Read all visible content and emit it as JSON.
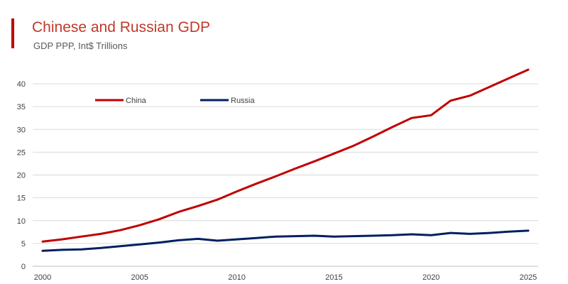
{
  "header": {
    "title": "Chinese and Russian GDP",
    "subtitle": "GDP PPP, Int$ Trillions",
    "accent_color": "#c00000",
    "title_color": "#c0392b"
  },
  "chart_data": {
    "type": "line",
    "title": "Chinese and Russian GDP",
    "subtitle": "GDP PPP, Int$ Trillions",
    "xlabel": "",
    "ylabel": "",
    "x": [
      2000,
      2001,
      2002,
      2003,
      2004,
      2005,
      2006,
      2007,
      2008,
      2009,
      2010,
      2011,
      2012,
      2013,
      2014,
      2015,
      2016,
      2017,
      2018,
      2019,
      2020,
      2021,
      2022,
      2023,
      2024,
      2025
    ],
    "xlim": [
      2000,
      2025
    ],
    "ylim": [
      0,
      40
    ],
    "x_ticks": [
      2000,
      2005,
      2010,
      2015,
      2020,
      2025
    ],
    "y_ticks": [
      0,
      5,
      10,
      15,
      20,
      25,
      30,
      35,
      40
    ],
    "grid": "horizontal",
    "legend_position": "top-left",
    "series": [
      {
        "name": "China",
        "color": "#c00000",
        "values": [
          5.4,
          5.9,
          6.5,
          7.1,
          7.9,
          9.0,
          10.3,
          11.9,
          13.2,
          14.6,
          16.4,
          18.1,
          19.7,
          21.4,
          23.0,
          24.7,
          26.4,
          28.4,
          30.5,
          32.5,
          33.1,
          36.3,
          37.4,
          39.3,
          41.2,
          43.1
        ]
      },
      {
        "name": "Russia",
        "color": "#002060",
        "values": [
          3.4,
          3.6,
          3.7,
          4.0,
          4.4,
          4.8,
          5.2,
          5.7,
          6.0,
          5.6,
          5.9,
          6.2,
          6.5,
          6.6,
          6.7,
          6.5,
          6.6,
          6.7,
          6.8,
          7.0,
          6.8,
          7.3,
          7.1,
          7.3,
          7.6,
          7.8
        ]
      }
    ]
  }
}
